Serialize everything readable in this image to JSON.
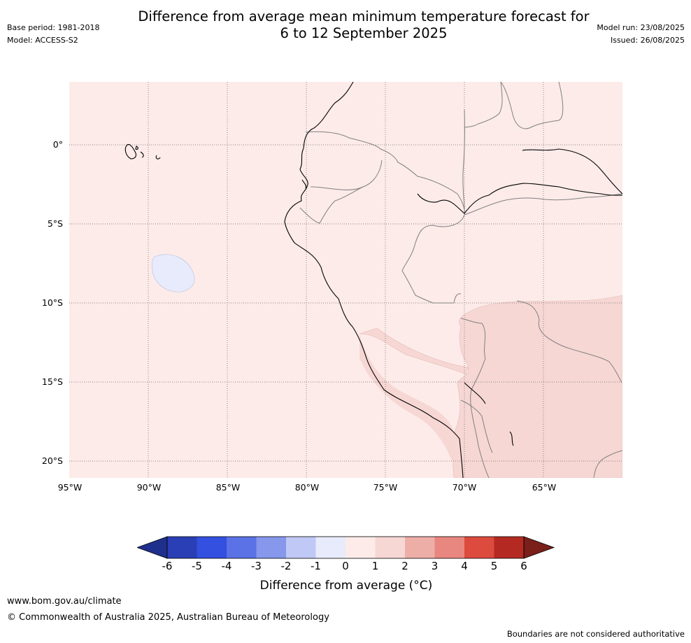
{
  "title_line1": "Difference from average mean minimum temperature forecast for",
  "title_line2": "6 to 12 September 2025",
  "base_period": "Base period: 1981-2018",
  "model": "Model: ACCESS-S2",
  "model_run": "Model run: 23/08/2025",
  "issued": "Issued: 26/08/2025",
  "lat_labels": [
    "0°",
    "5°S",
    "10°S",
    "15°S",
    "20°S"
  ],
  "lon_labels": [
    "95°W",
    "90°W",
    "85°W",
    "80°W",
    "75°W",
    "70°W",
    "65°W"
  ],
  "colorbar": {
    "ticks": [
      "-6",
      "-5",
      "-4",
      "-3",
      "-2",
      "-1",
      "0",
      "1",
      "2",
      "3",
      "4",
      "5",
      "6"
    ],
    "colors": [
      "#1f2f8c",
      "#2a3fb5",
      "#3350e0",
      "#5a72e6",
      "#8697ec",
      "#c0c8f5",
      "#e8ebfb",
      "#fcebe9",
      "#f6d7d4",
      "#eeaea8",
      "#e8877f",
      "#dd4a3e",
      "#b42a22",
      "#7a1f1a"
    ],
    "label": "Difference from average (°C)"
  },
  "website": "www.bom.gov.au/climate",
  "copyright": "© Commonwealth of Australia 2025, Australian Bureau of Meteorology",
  "disclaimer": "Boundaries are not considered authoritative"
}
